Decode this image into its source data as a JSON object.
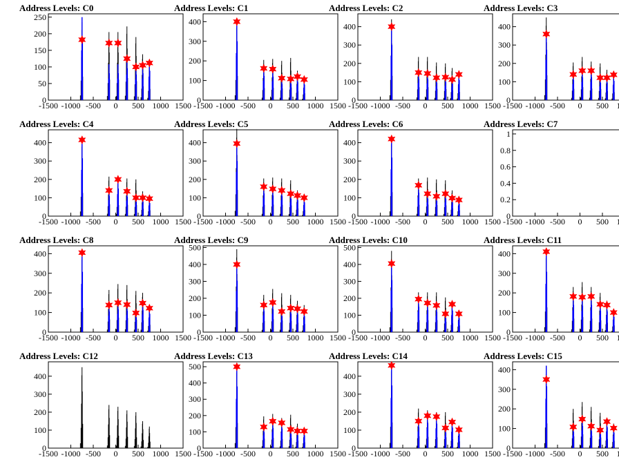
{
  "figure": {
    "x_ticks": [
      "-1500",
      "-1000",
      "-500",
      "0",
      "500",
      "1000",
      "1500"
    ],
    "xlim": [
      -1500,
      1500
    ]
  },
  "colors": {
    "overlay_line": "#0000ff",
    "base_line": "#000000",
    "marker": "#ff0000"
  },
  "chart_data": [
    {
      "type": "bar",
      "title": "Address Levels: C0",
      "ylim": [
        0,
        260
      ],
      "yticks": [
        0,
        50,
        100,
        150,
        200,
        250
      ],
      "peaks_x": [
        -750,
        -150,
        50,
        250,
        450,
        600,
        750
      ],
      "black_peaks": [
        235,
        205,
        205,
        222,
        190,
        138,
        112
      ],
      "blue_peaks": [
        250,
        108,
        108,
        128,
        103,
        108,
        118
      ],
      "markers": {
        "x": [
          -750,
          -150,
          50,
          250,
          450,
          600,
          750
        ],
        "y": [
          182,
          172,
          172,
          125,
          100,
          105,
          112
        ]
      }
    },
    {
      "type": "bar",
      "title": "Address Levels: C1",
      "ylim": [
        0,
        440
      ],
      "yticks": [
        0,
        100,
        200,
        300,
        400
      ],
      "peaks_x": [
        -750,
        -150,
        50,
        250,
        450,
        600,
        750
      ],
      "black_peaks": [
        410,
        205,
        210,
        200,
        215,
        150,
        115
      ],
      "blue_peaks": [
        400,
        165,
        160,
        110,
        110,
        122,
        105
      ],
      "markers": {
        "x": [
          -750,
          -150,
          50,
          250,
          450,
          600,
          750
        ],
        "y": [
          400,
          162,
          158,
          112,
          108,
          120,
          105
        ]
      }
    },
    {
      "type": "bar",
      "title": "Address Levels: C2",
      "ylim": [
        0,
        470
      ],
      "yticks": [
        0,
        100,
        200,
        300,
        400
      ],
      "peaks_x": [
        -750,
        -150,
        50,
        250,
        450,
        600,
        750
      ],
      "black_peaks": [
        440,
        235,
        235,
        205,
        200,
        175,
        150
      ],
      "blue_peaks": [
        400,
        155,
        150,
        125,
        130,
        120,
        145
      ],
      "markers": {
        "x": [
          -750,
          -150,
          50,
          250,
          450,
          600,
          750
        ],
        "y": [
          400,
          150,
          145,
          122,
          125,
          112,
          140
        ]
      }
    },
    {
      "type": "bar",
      "title": "Address Levels: C3",
      "ylim": [
        0,
        470
      ],
      "yticks": [
        0,
        100,
        200,
        300,
        400
      ],
      "peaks_x": [
        -750,
        -150,
        50,
        250,
        450,
        600,
        750
      ],
      "black_peaks": [
        450,
        205,
        235,
        210,
        200,
        165,
        145
      ],
      "blue_peaks": [
        365,
        145,
        165,
        165,
        125,
        125,
        140
      ],
      "markers": {
        "x": [
          -750,
          -150,
          50,
          250,
          450,
          600,
          750
        ],
        "y": [
          360,
          140,
          160,
          160,
          122,
          122,
          138
        ]
      }
    },
    {
      "type": "bar",
      "title": "Address Levels: C4",
      "ylim": [
        0,
        470
      ],
      "yticks": [
        0,
        100,
        200,
        300,
        400
      ],
      "peaks_x": [
        -750,
        -150,
        50,
        250,
        450,
        600,
        750
      ],
      "black_peaks": [
        420,
        215,
        200,
        205,
        200,
        135,
        105
      ],
      "blue_peaks": [
        420,
        145,
        200,
        140,
        105,
        105,
        95
      ],
      "markers": {
        "x": [
          -750,
          -150,
          50,
          250,
          450,
          600,
          750
        ],
        "y": [
          415,
          140,
          200,
          135,
          100,
          100,
          95
        ]
      }
    },
    {
      "type": "bar",
      "title": "Address Levels: C5",
      "ylim": [
        0,
        470
      ],
      "yticks": [
        0,
        100,
        200,
        300,
        400
      ],
      "peaks_x": [
        -750,
        -150,
        50,
        250,
        450,
        600,
        750
      ],
      "black_peaks": [
        475,
        205,
        210,
        205,
        195,
        140,
        110
      ],
      "blue_peaks": [
        400,
        165,
        150,
        145,
        125,
        115,
        100
      ],
      "markers": {
        "x": [
          -750,
          -150,
          50,
          250,
          450,
          600,
          750
        ],
        "y": [
          395,
          160,
          148,
          140,
          122,
          112,
          100
        ]
      }
    },
    {
      "type": "bar",
      "title": "Address Levels: C6",
      "ylim": [
        0,
        470
      ],
      "yticks": [
        0,
        100,
        200,
        300,
        400
      ],
      "peaks_x": [
        -750,
        -150,
        50,
        250,
        450,
        600,
        750
      ],
      "black_peaks": [
        435,
        205,
        210,
        200,
        195,
        140,
        105
      ],
      "blue_peaks": [
        425,
        170,
        125,
        110,
        125,
        100,
        90
      ],
      "markers": {
        "x": [
          -750,
          -150,
          50,
          250,
          450,
          600,
          750
        ],
        "y": [
          420,
          168,
          122,
          108,
          122,
          98,
          88
        ]
      }
    },
    {
      "type": "bar",
      "title": "Address Levels: C7",
      "ylim": [
        0,
        1.05
      ],
      "yticks": [
        0,
        0.2,
        0.4,
        0.6,
        0.8,
        1
      ],
      "peaks_x": [],
      "black_peaks": [],
      "blue_peaks": [],
      "markers": {
        "x": [],
        "y": []
      }
    },
    {
      "type": "bar",
      "title": "Address Levels: C8",
      "ylim": [
        0,
        440
      ],
      "yticks": [
        0,
        100,
        200,
        300,
        400
      ],
      "peaks_x": [
        -750,
        -150,
        50,
        250,
        450,
        600,
        750
      ],
      "black_peaks": [
        410,
        215,
        245,
        240,
        210,
        200,
        125
      ],
      "blue_peaks": [
        410,
        140,
        155,
        145,
        100,
        150,
        125
      ],
      "markers": {
        "x": [
          -750,
          -150,
          50,
          250,
          450,
          600,
          750
        ],
        "y": [
          405,
          138,
          150,
          140,
          98,
          148,
          122
        ]
      }
    },
    {
      "type": "bar",
      "title": "Address Levels: C9",
      "ylim": [
        0,
        510
      ],
      "yticks": [
        0,
        100,
        200,
        300,
        400,
        500
      ],
      "peaks_x": [
        -750,
        -150,
        50,
        250,
        450,
        600,
        750
      ],
      "black_peaks": [
        490,
        220,
        255,
        230,
        220,
        185,
        160
      ],
      "blue_peaks": [
        405,
        165,
        180,
        125,
        145,
        140,
        125
      ],
      "markers": {
        "x": [
          -750,
          -150,
          50,
          250,
          450,
          600,
          750
        ],
        "y": [
          400,
          160,
          175,
          122,
          142,
          138,
          122
        ]
      }
    },
    {
      "type": "bar",
      "title": "Address Levels: C10",
      "ylim": [
        0,
        510
      ],
      "yticks": [
        0,
        100,
        200,
        300,
        400,
        500
      ],
      "peaks_x": [
        -750,
        -150,
        50,
        250,
        450,
        600,
        750
      ],
      "black_peaks": [
        480,
        235,
        235,
        235,
        205,
        170,
        130
      ],
      "blue_peaks": [
        410,
        200,
        175,
        160,
        110,
        170,
        110
      ],
      "markers": {
        "x": [
          -750,
          -150,
          50,
          250,
          450,
          600,
          750
        ],
        "y": [
          405,
          195,
          172,
          158,
          108,
          165,
          108
        ]
      }
    },
    {
      "type": "bar",
      "title": "Address Levels: C11",
      "ylim": [
        0,
        440
      ],
      "yticks": [
        0,
        100,
        200,
        300,
        400
      ],
      "peaks_x": [
        -750,
        -150,
        50,
        250,
        450,
        600,
        750
      ],
      "black_peaks": [
        420,
        230,
        255,
        230,
        200,
        160,
        115
      ],
      "blue_peaks": [
        410,
        185,
        180,
        185,
        145,
        140,
        105
      ],
      "markers": {
        "x": [
          -750,
          -150,
          50,
          250,
          450,
          600,
          750
        ],
        "y": [
          410,
          182,
          178,
          182,
          142,
          138,
          100
        ]
      }
    },
    {
      "type": "bar",
      "title": "Address Levels: C12",
      "ylim": [
        0,
        480
      ],
      "yticks": [
        0,
        100,
        200,
        300,
        400
      ],
      "peaks_x": [
        -750,
        -150,
        50,
        250,
        450,
        600,
        750
      ],
      "black_peaks": [
        450,
        240,
        230,
        210,
        200,
        150,
        120
      ],
      "blue_peaks": [],
      "markers": {
        "x": [],
        "y": []
      }
    },
    {
      "type": "bar",
      "title": "Address Levels: C13",
      "ylim": [
        0,
        530
      ],
      "yticks": [
        0,
        100,
        200,
        300,
        400,
        500
      ],
      "peaks_x": [
        -750,
        -150,
        50,
        250,
        450,
        600,
        750
      ],
      "black_peaks": [
        515,
        195,
        210,
        185,
        205,
        150,
        120
      ],
      "blue_peaks": [
        505,
        130,
        165,
        160,
        115,
        105,
        105
      ],
      "markers": {
        "x": [
          -750,
          -150,
          50,
          250,
          450,
          600,
          750
        ],
        "y": [
          500,
          130,
          165,
          155,
          115,
          105,
          105
        ]
      }
    },
    {
      "type": "bar",
      "title": "Address Levels: C14",
      "ylim": [
        0,
        480
      ],
      "yticks": [
        0,
        100,
        200,
        300,
        400
      ],
      "peaks_x": [
        -750,
        -150,
        50,
        250,
        450,
        600,
        750
      ],
      "black_peaks": [
        475,
        220,
        210,
        200,
        200,
        165,
        125
      ],
      "blue_peaks": [
        465,
        155,
        185,
        180,
        115,
        150,
        105
      ],
      "markers": {
        "x": [
          -750,
          -150,
          50,
          250,
          450,
          600,
          750
        ],
        "y": [
          460,
          150,
          180,
          175,
          112,
          145,
          102
        ]
      }
    },
    {
      "type": "bar",
      "title": "Address Levels: C15",
      "ylim": [
        0,
        440
      ],
      "yticks": [
        0,
        100,
        200,
        300,
        400
      ],
      "peaks_x": [
        -750,
        -150,
        50,
        250,
        450,
        600,
        750
      ],
      "black_peaks": [
        420,
        200,
        235,
        210,
        180,
        155,
        125
      ],
      "blue_peaks": [
        420,
        110,
        150,
        115,
        95,
        140,
        105
      ],
      "markers": {
        "x": [
          -750,
          -150,
          50,
          250,
          450,
          600,
          750
        ],
        "y": [
          350,
          108,
          148,
          112,
          92,
          135,
          102
        ]
      }
    }
  ]
}
